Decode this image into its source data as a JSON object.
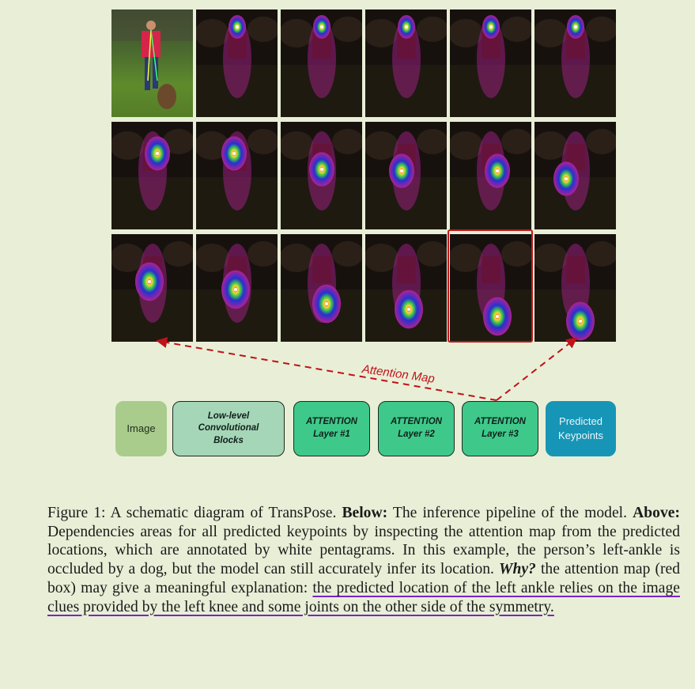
{
  "figure": {
    "pipeline": {
      "image": "Image",
      "conv": "Low-level\nConvolutional\nBlocks",
      "layer1": "ATTENTION\nLayer #1",
      "layer2": "ATTENTION\nLayer #2",
      "layer3": "ATTENTION\nLayer #3",
      "predicted": "Predicted\nKeypoints"
    },
    "attention_label": "Attention Map",
    "colors": {
      "arrow": "#c0121a",
      "highlight_box": "#c01a1a",
      "underline": "#7a24c8"
    }
  },
  "caption": {
    "prefix": "Figure 1: A schematic diagram of TransPose. ",
    "below_label": "Below:",
    "below_text": " The inference pipeline of the model. ",
    "above_label": "Above:",
    "above_text": " Dependencies areas for all predicted keypoints by inspecting the attention map from the predicted locations, which are annotated by white pentagrams. In this example, the person’s left-ankle is occluded by a dog, but the model can still accurately infer its location. ",
    "why_label": "Why?",
    "why_text": " the attention map (red box) may give a meaningful explanation: ",
    "underlined": "the predicted location of the left ankle relies on the image clues provided by the left knee and some joints on the other side of the symmetry."
  }
}
